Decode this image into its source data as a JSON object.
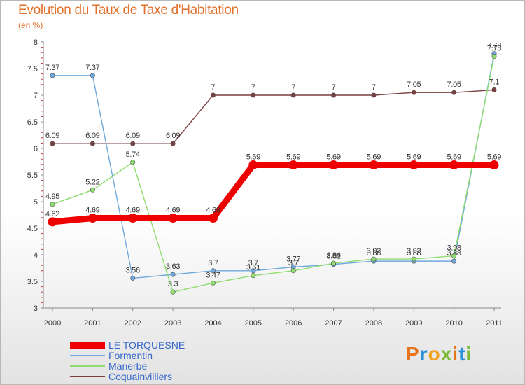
{
  "header": {
    "title": "Evolution du Taux de Taxe d'Habitation",
    "subtitle": "(en %)"
  },
  "logo": {
    "letters": [
      "P",
      "r",
      "o",
      "x",
      "i",
      "t",
      "i"
    ],
    "colors": [
      "#e8731d",
      "#2d8fd8",
      "#f2a31e",
      "#7ab935",
      "#e8731d",
      "#2d8fd8",
      "#7ab935"
    ]
  },
  "chart_data": {
    "type": "line",
    "title": "Evolution du Taux de Taxe d'Habitation",
    "ylabel": "(en %)",
    "x": [
      2000,
      2001,
      2002,
      2003,
      2004,
      2005,
      2006,
      2007,
      2008,
      2009,
      2010,
      2011
    ],
    "xticks": [
      "2000",
      "2001",
      "2002",
      "2003",
      "2004",
      "2005",
      "2006",
      "2007",
      "2008",
      "2009",
      "2010",
      "2011"
    ],
    "ylim": [
      3,
      8
    ],
    "yticks": [
      "3",
      "3.5",
      "4",
      "4.5",
      "5",
      "5.5",
      "6",
      "6.5",
      "7",
      "7.5",
      "8"
    ],
    "grid": false,
    "legend_position": "bottom-left",
    "series": [
      {
        "name": "LE TORQUESNE",
        "color": "#ee0000",
        "values": [
          4.62,
          4.69,
          4.69,
          4.69,
          4.69,
          5.69,
          5.69,
          5.69,
          5.69,
          5.69,
          5.69,
          5.69
        ],
        "labels": [
          "4.62",
          "4.69",
          "4.69",
          "4.69",
          "4.69",
          "5.69",
          "5.69",
          "5.69",
          "5.69",
          "5.69",
          "5.69",
          "5.69"
        ]
      },
      {
        "name": "Formentin",
        "color": "#6fa8dc",
        "values": [
          7.37,
          7.37,
          3.56,
          3.63,
          3.7,
          3.7,
          3.77,
          3.82,
          3.88,
          3.88,
          3.88,
          7.78
        ],
        "labels": [
          "7.37",
          "7.37",
          "3.56",
          "3.63",
          "3.7",
          "3.7",
          "3.77",
          "3.82",
          "3.88",
          "3.88",
          "3.88",
          "7.78"
        ]
      },
      {
        "name": "Manerbe",
        "color": "#8fdc6f",
        "values": [
          4.95,
          5.22,
          5.74,
          3.3,
          3.47,
          3.61,
          3.7,
          3.84,
          3.92,
          3.92,
          3.98,
          7.73
        ],
        "labels": [
          "4.95",
          "5.22",
          "5.74",
          "3.3",
          "3.47",
          "3.61",
          "3.7",
          "3.84",
          "3.92",
          "3.92",
          "3.98",
          "7.73"
        ]
      },
      {
        "name": "Coquainvilliers",
        "color": "#7a3f3f",
        "values": [
          6.09,
          6.09,
          6.09,
          6.09,
          7,
          7,
          7,
          7,
          7,
          7.05,
          7.05,
          7.1
        ],
        "labels": [
          "6.09",
          "6.09",
          "6.09",
          "6.09",
          "7",
          "7",
          "7",
          "7",
          "7",
          "7.05",
          "7.05",
          "7.1"
        ]
      }
    ]
  }
}
